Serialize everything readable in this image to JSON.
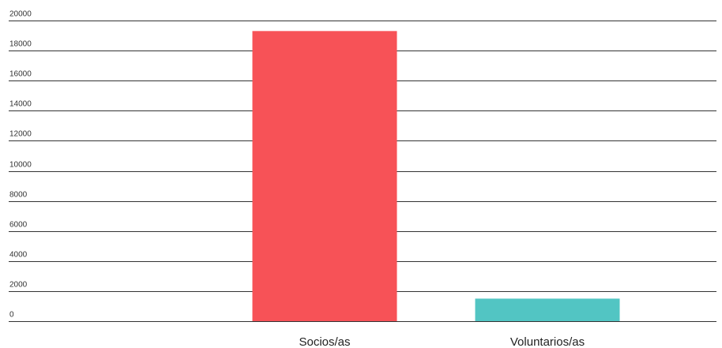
{
  "chart_data": {
    "type": "bar",
    "title": "",
    "xlabel": "",
    "ylabel": "",
    "categories": [
      "Socios/as",
      "Voluntarios/as"
    ],
    "values": [
      19300,
      1500
    ],
    "colors": [
      "#f75257",
      "#52c5c3"
    ],
    "ylim": [
      0,
      20000
    ],
    "yticks": [
      0,
      2000,
      4000,
      6000,
      8000,
      10000,
      12000,
      14000,
      16000,
      18000,
      20000
    ],
    "ytick_labels": [
      "0",
      "2000",
      "4000",
      "6000",
      "8000",
      "10000",
      "12000",
      "14000",
      "16000",
      "18000",
      "20000"
    ],
    "grid": true,
    "legend": "none"
  }
}
